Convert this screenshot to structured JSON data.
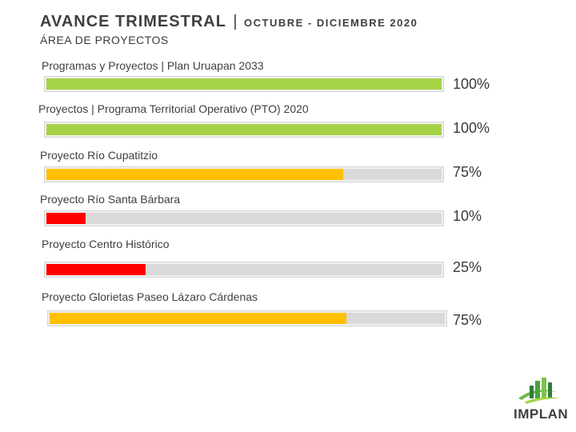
{
  "header": {
    "title": "AVANCE TRIMESTRAL",
    "separator": "|",
    "period": "OCTUBRE - DICIEMBRE 2020",
    "subtitle": "ÁREA DE PROYECTOS"
  },
  "colors": {
    "complete": "#a6d346",
    "medium": "#ffc000",
    "low": "#ff0000",
    "track": "#d9d9d9"
  },
  "projects": [
    {
      "label": "Programas y Proyectos | Plan Uruapan 2033",
      "value": 1.0,
      "percent_text": "100%",
      "status": "complete"
    },
    {
      "label": "Proyectos | Programa Territorial Operativo (PTO) 2020",
      "value": 1.0,
      "percent_text": "100%",
      "status": "complete"
    },
    {
      "label": "Proyecto Río Cupatitzio",
      "value": 0.75,
      "percent_text": "75%",
      "status": "medium"
    },
    {
      "label": "Proyecto Río Santa Bárbara",
      "value": 0.1,
      "percent_text": "10%",
      "status": "low"
    },
    {
      "label": "Proyecto Centro Histórico",
      "value": 0.25,
      "percent_text": "25%",
      "status": "low"
    },
    {
      "label": "Proyecto Glorietas Paseo Lázaro Cárdenas",
      "value": 0.75,
      "percent_text": "75%",
      "status": "medium"
    }
  ],
  "logo": {
    "name": "IMPLAN",
    "icon": "building-leaf-logo-icon"
  }
}
